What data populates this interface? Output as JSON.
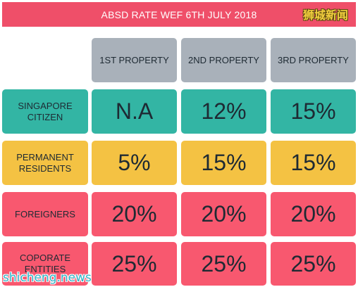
{
  "watermarks": {
    "top_right": "狮城新闻",
    "bottom_left": "shicheng.news"
  },
  "colors": {
    "banner": "#ef4f69",
    "header": "#a9b1ba",
    "text": "#1e2a33",
    "banner_text": "#ffffff"
  },
  "chart_data": {
    "type": "table",
    "title": "ABSD RATE WEF 6TH JULY 2018",
    "columns": [
      "1ST PROPERTY",
      "2ND PROPERTY",
      "3RD PROPERTY"
    ],
    "rows": [
      {
        "label_lines": [
          "SINGAPORE",
          "CITIZEN"
        ],
        "color": "#33b5a4",
        "values": [
          "N.A",
          "12%",
          "15%"
        ]
      },
      {
        "label_lines": [
          "PERMANENT",
          "RESIDENTS"
        ],
        "color": "#f4c243",
        "values": [
          "5%",
          "15%",
          "15%"
        ]
      },
      {
        "label_lines": [
          "FOREIGNERS"
        ],
        "color": "#f8586f",
        "values": [
          "20%",
          "20%",
          "20%"
        ]
      },
      {
        "label_lines": [
          "COPORATE",
          "ENTITIES"
        ],
        "color": "#f8586f",
        "values": [
          "25%",
          "25%",
          "25%"
        ]
      }
    ]
  }
}
